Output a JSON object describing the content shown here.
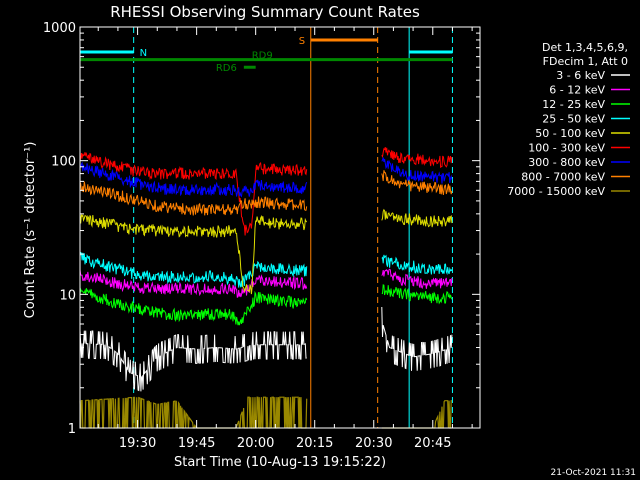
{
  "chart_data": {
    "type": "line",
    "title": "RHESSI Observing Summary Count Rates",
    "xlabel": "Start Time (10-Aug-13 19:15:22)",
    "ylabel": "Count Rate (s⁻¹ detector⁻¹)",
    "yscale": "log",
    "ylim": [
      1,
      1000
    ],
    "xlim": [
      "19:15:22",
      "20:57:00"
    ],
    "x_ticks": [
      "19:30",
      "19:45",
      "20:00",
      "20:15",
      "20:30",
      "20:45"
    ],
    "y_ticks": [
      "1",
      "10",
      "100",
      "1000"
    ],
    "legend": {
      "placement": "right",
      "header": [
        "Det 1,3,4,5,6,9,",
        "FDecim 1, Att 0"
      ],
      "entries": [
        {
          "name": "3 - 6 keV",
          "color": "#ffffff"
        },
        {
          "name": "6 - 12 keV",
          "color": "#ff00ff"
        },
        {
          "name": "12 - 25 keV",
          "color": "#00ff00"
        },
        {
          "name": "25 - 50 keV",
          "color": "#00ffff"
        },
        {
          "name": "50 - 100 keV",
          "color": "#dddd00"
        },
        {
          "name": "100 - 300 keV",
          "color": "#ff0000"
        },
        {
          "name": "300 - 800 keV",
          "color": "#0000ff"
        },
        {
          "name": "800 - 7000 keV",
          "color": "#ff8000"
        },
        {
          "name": "7000 - 15000 keV",
          "color": "#998800"
        }
      ]
    },
    "gaps": [
      [
        "20:13:00",
        "20:32:00"
      ]
    ],
    "series": [
      {
        "name": "3 - 6 keV",
        "color": "#ffffff",
        "points": [
          [
            "19:15:22",
            4.3
          ],
          [
            "19:22:00",
            4.2
          ],
          [
            "19:25:00",
            3.6
          ],
          [
            "19:28:00",
            2.6
          ],
          [
            "19:31:00",
            2.4
          ],
          [
            "19:35:00",
            3.4
          ],
          [
            "19:40:00",
            4.0
          ],
          [
            "19:45:00",
            3.9
          ],
          [
            "19:50:00",
            4.0
          ],
          [
            "19:55:00",
            3.9
          ],
          [
            "19:58:00",
            4.1
          ],
          [
            "20:00:00",
            4.2
          ],
          [
            "20:05:00",
            4.2
          ],
          [
            "20:12:00",
            4.2
          ],
          [
            "20:32:00",
            6.5
          ],
          [
            "20:34:00",
            4.0
          ],
          [
            "20:40:00",
            3.4
          ],
          [
            "20:45:00",
            3.6
          ],
          [
            "20:50:00",
            4.0
          ]
        ]
      },
      {
        "name": "6 - 12 keV",
        "color": "#ff00ff",
        "points": [
          [
            "19:15:22",
            14
          ],
          [
            "19:20:00",
            13
          ],
          [
            "19:28:00",
            11.5
          ],
          [
            "19:35:00",
            11
          ],
          [
            "19:40:00",
            11
          ],
          [
            "19:45:00",
            11
          ],
          [
            "19:50:00",
            11
          ],
          [
            "19:54:00",
            11
          ],
          [
            "19:56:00",
            10
          ],
          [
            "19:58:00",
            11
          ],
          [
            "20:00:00",
            13
          ],
          [
            "20:05:00",
            12.5
          ],
          [
            "20:12:00",
            12
          ],
          [
            "20:32:00",
            15
          ],
          [
            "20:37:00",
            13
          ],
          [
            "20:45:00",
            12
          ],
          [
            "20:50:00",
            12
          ]
        ]
      },
      {
        "name": "12 - 25 keV",
        "color": "#00ff00",
        "points": [
          [
            "19:15:22",
            10.5
          ],
          [
            "19:20:00",
            9.5
          ],
          [
            "19:28:00",
            8
          ],
          [
            "19:35:00",
            7.2
          ],
          [
            "19:40:00",
            7
          ],
          [
            "19:45:00",
            7
          ],
          [
            "19:50:00",
            7.2
          ],
          [
            "19:54:00",
            7
          ],
          [
            "19:56:00",
            6
          ],
          [
            "19:58:00",
            7.5
          ],
          [
            "20:00:00",
            9.5
          ],
          [
            "20:05:00",
            9
          ],
          [
            "20:12:00",
            8.5
          ],
          [
            "20:32:00",
            11
          ],
          [
            "20:37:00",
            10
          ],
          [
            "20:45:00",
            9.5
          ],
          [
            "20:50:00",
            9.5
          ]
        ]
      },
      {
        "name": "25 - 50 keV",
        "color": "#00ffff",
        "points": [
          [
            "19:15:22",
            19
          ],
          [
            "19:20:00",
            17
          ],
          [
            "19:28:00",
            14.5
          ],
          [
            "19:35:00",
            13.5
          ],
          [
            "19:40:00",
            13.5
          ],
          [
            "19:45:00",
            13.5
          ],
          [
            "19:50:00",
            13.8
          ],
          [
            "19:54:00",
            13
          ],
          [
            "19:56:00",
            12
          ],
          [
            "19:58:00",
            13.5
          ],
          [
            "20:00:00",
            16
          ],
          [
            "20:05:00",
            15.5
          ],
          [
            "20:12:00",
            15
          ],
          [
            "20:32:00",
            18
          ],
          [
            "20:37:00",
            16.5
          ],
          [
            "20:45:00",
            15.5
          ],
          [
            "20:50:00",
            15.5
          ]
        ]
      },
      {
        "name": "50 - 100 keV",
        "color": "#dddd00",
        "points": [
          [
            "19:15:22",
            37
          ],
          [
            "19:20:00",
            35
          ],
          [
            "19:28:00",
            31
          ],
          [
            "19:35:00",
            30
          ],
          [
            "19:40:00",
            30
          ],
          [
            "19:45:00",
            29.5
          ],
          [
            "19:50:00",
            29.5
          ],
          [
            "19:55:00",
            30
          ],
          [
            "19:57:00",
            11
          ],
          [
            "19:59:00",
            11
          ],
          [
            "20:00:00",
            35
          ],
          [
            "20:05:00",
            34
          ],
          [
            "20:12:00",
            33.5
          ],
          [
            "20:32:00",
            39
          ],
          [
            "20:37:00",
            37
          ],
          [
            "20:45:00",
            35
          ],
          [
            "20:50:00",
            35
          ]
        ]
      },
      {
        "name": "100 - 300 keV",
        "color": "#ff0000",
        "points": [
          [
            "19:15:22",
            108
          ],
          [
            "19:20:00",
            100
          ],
          [
            "19:28:00",
            85
          ],
          [
            "19:35:00",
            80
          ],
          [
            "19:40:00",
            80
          ],
          [
            "19:45:00",
            80
          ],
          [
            "19:50:00",
            80
          ],
          [
            "19:55:00",
            80
          ],
          [
            "19:57:00",
            30
          ],
          [
            "19:59:00",
            33
          ],
          [
            "20:00:00",
            88
          ],
          [
            "20:05:00",
            86
          ],
          [
            "20:12:00",
            85
          ],
          [
            "20:32:00",
            118
          ],
          [
            "20:37:00",
            105
          ],
          [
            "20:45:00",
            99
          ],
          [
            "20:50:00",
            98
          ]
        ]
      },
      {
        "name": "300 - 800 keV",
        "color": "#0000ff",
        "points": [
          [
            "19:15:22",
            90
          ],
          [
            "19:20:00",
            82
          ],
          [
            "19:28:00",
            70
          ],
          [
            "19:35:00",
            62
          ],
          [
            "19:40:00",
            61
          ],
          [
            "19:45:00",
            60
          ],
          [
            "19:50:00",
            61
          ],
          [
            "19:55:00",
            60
          ],
          [
            "19:57:00",
            58
          ],
          [
            "19:59:00",
            60
          ],
          [
            "20:00:00",
            66
          ],
          [
            "20:05:00",
            64
          ],
          [
            "20:12:00",
            62
          ],
          [
            "20:32:00",
            102
          ],
          [
            "20:37:00",
            80
          ],
          [
            "20:45:00",
            75
          ],
          [
            "20:50:00",
            74
          ]
        ]
      },
      {
        "name": "800 - 7000 keV",
        "color": "#ff8000",
        "points": [
          [
            "19:15:22",
            65
          ],
          [
            "19:20:00",
            60
          ],
          [
            "19:28:00",
            52
          ],
          [
            "19:35:00",
            46
          ],
          [
            "19:40:00",
            44
          ],
          [
            "19:45:00",
            43
          ],
          [
            "19:50:00",
            43
          ],
          [
            "19:55:00",
            43
          ],
          [
            "19:57:00",
            47
          ],
          [
            "20:00:00",
            49
          ],
          [
            "20:05:00",
            48
          ],
          [
            "20:12:00",
            46
          ],
          [
            "20:32:00",
            78
          ],
          [
            "20:37:00",
            66
          ],
          [
            "20:45:00",
            62
          ],
          [
            "20:50:00",
            61
          ]
        ]
      },
      {
        "name": "7000 - 15000 keV",
        "color": "#998800",
        "points": [
          [
            "19:15:22",
            1.6
          ],
          [
            "19:30:00",
            1.7
          ],
          [
            "19:35:00",
            1.5
          ],
          [
            "19:40:00",
            1.6
          ],
          [
            "19:45:00",
            1.0
          ],
          [
            "19:50:00",
            1.0
          ],
          [
            "19:55:00",
            1.0
          ],
          [
            "19:58:00",
            1.7
          ],
          [
            "20:05:00",
            1.7
          ],
          [
            "20:12:00",
            1.7
          ],
          [
            "20:32:00",
            1.0
          ],
          [
            "20:45:00",
            1.0
          ],
          [
            "20:48:00",
            1.6
          ],
          [
            "20:50:00",
            1.6
          ]
        ]
      }
    ],
    "annotations": [
      {
        "label": "N",
        "color": "#00ffff",
        "level": 650,
        "segments": [
          [
            "19:15:22",
            "19:29:00"
          ],
          [
            "20:39:00",
            "20:50:00"
          ]
        ]
      },
      {
        "label": "S",
        "color": "#ff8000",
        "level": 800,
        "segments": [
          [
            "20:14:00",
            "20:31:00"
          ]
        ]
      },
      {
        "label": "RD6",
        "color": "#008800",
        "level": 500,
        "segments": [
          [
            "19:57:00",
            "20:00:00"
          ]
        ]
      },
      {
        "label": "RD9",
        "color": "#008800",
        "level": 570,
        "segments": [
          [
            "19:15:22",
            "20:50:00"
          ]
        ]
      }
    ],
    "vlines": [
      {
        "x": "19:15:22",
        "color": "#00ffff",
        "style": "solid"
      },
      {
        "x": "19:29:00",
        "color": "#00ffff",
        "style": "dashed"
      },
      {
        "x": "20:14:00",
        "color": "#ff8000",
        "style": "solid"
      },
      {
        "x": "20:31:00",
        "color": "#ff8000",
        "style": "dashed"
      },
      {
        "x": "20:39:00",
        "color": "#00ffff",
        "style": "solid"
      },
      {
        "x": "20:50:00",
        "color": "#00ffff",
        "style": "dashed"
      }
    ]
  },
  "footer_date": "21-Oct-2021 11:31"
}
